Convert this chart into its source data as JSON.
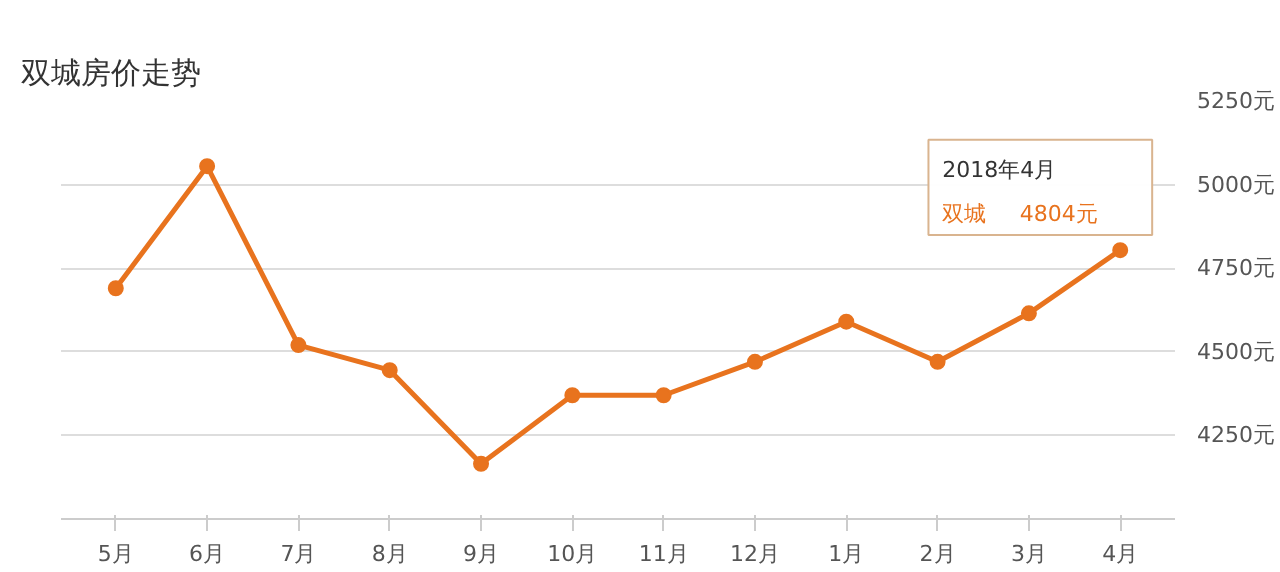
{
  "chart_data": {
    "type": "line",
    "title": "双城房价走势",
    "categories": [
      "5月",
      "6月",
      "7月",
      "8月",
      "9月",
      "10月",
      "11月",
      "12月",
      "1月",
      "2月",
      "3月",
      "4月"
    ],
    "series": [
      {
        "name": "双城",
        "color": "#e8731e",
        "values": [
          4690,
          5055,
          4520,
          4445,
          4165,
          4370,
          4370,
          4470,
          4590,
          4470,
          4615,
          4804
        ],
        "value_labels": [
          null,
          null,
          null,
          null,
          null,
          null,
          null,
          null,
          null,
          null,
          null,
          "4804元"
        ]
      }
    ],
    "ylim": [
      4000,
      5250
    ],
    "yticks": [
      {
        "value": 4000,
        "label": null
      },
      {
        "value": 4250,
        "label": "4250元"
      },
      {
        "value": 4500,
        "label": "4500元"
      },
      {
        "value": 4750,
        "label": "4750元"
      },
      {
        "value": 5000,
        "label": "5000元"
      },
      {
        "value": 5250,
        "label": "5250元"
      }
    ],
    "annotations": [
      "2018年4月"
    ],
    "grid": "y",
    "marker": "circle",
    "line_style": "solid"
  }
}
